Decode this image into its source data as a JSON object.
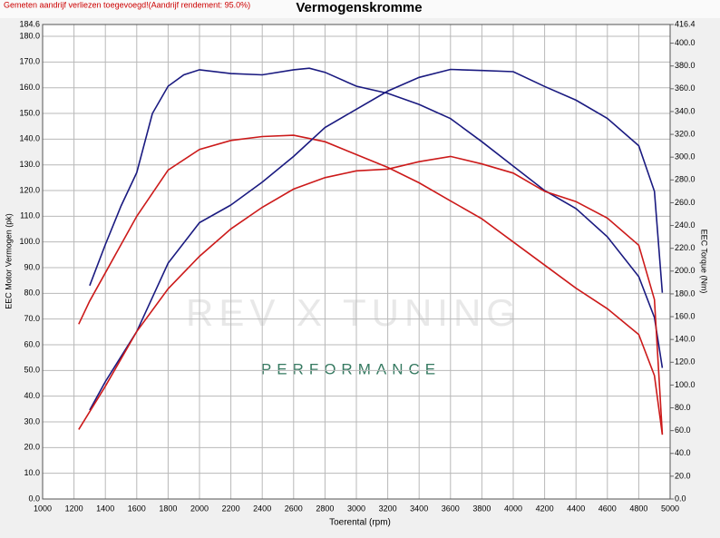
{
  "chart_data": {
    "type": "line",
    "title": "Vermogenskromme",
    "subtitle": "Gemeten aandrijf verliezen toegevoegd!(Aandrijf rendement: 95.0%)",
    "xlabel": "Toerental (rpm)",
    "ylabel": "EEC Motor Vermogen (pk)",
    "y2label": "EEC Torque (Nm)",
    "watermark": {
      "brand": "REV X TUNING",
      "tagline": "PERFORMANCE"
    },
    "grid": true,
    "xlim": [
      1000,
      5000
    ],
    "xticks": [
      1000,
      1200,
      1400,
      1600,
      1800,
      2000,
      2200,
      2400,
      2600,
      2800,
      3000,
      3200,
      3400,
      3600,
      3800,
      4000,
      4200,
      4400,
      4600,
      4800,
      5000
    ],
    "ylim": [
      0,
      184.6
    ],
    "yticks": [
      {
        "value": 0,
        "label": "0.0"
      },
      {
        "value": 10,
        "label": "10.0"
      },
      {
        "value": 20,
        "label": "20.0"
      },
      {
        "value": 30,
        "label": "30.0"
      },
      {
        "value": 40,
        "label": "40.0"
      },
      {
        "value": 50,
        "label": "50.0"
      },
      {
        "value": 60,
        "label": "60.0"
      },
      {
        "value": 70,
        "label": "70.0"
      },
      {
        "value": 80,
        "label": "80.0"
      },
      {
        "value": 90,
        "label": "90.0"
      },
      {
        "value": 100,
        "label": "100.0"
      },
      {
        "value": 110,
        "label": "110.0"
      },
      {
        "value": 120,
        "label": "120.0"
      },
      {
        "value": 130,
        "label": "130.0"
      },
      {
        "value": 140,
        "label": "140.0"
      },
      {
        "value": 150,
        "label": "150.0"
      },
      {
        "value": 160,
        "label": "160.0"
      },
      {
        "value": 170,
        "label": "170.0"
      },
      {
        "value": 180,
        "label": "180.0"
      },
      184.6
    ],
    "y2lim": [
      0,
      416.4
    ],
    "y2ticks": [
      {
        "value": 0,
        "label": "0.0"
      },
      {
        "value": 20,
        "label": "20.0"
      },
      {
        "value": 40,
        "label": "40.0"
      },
      {
        "value": 60,
        "label": "60.0"
      },
      {
        "value": 80,
        "label": "80.0"
      },
      {
        "value": 100,
        "label": "100.0"
      },
      {
        "value": 120,
        "label": "120.0"
      },
      {
        "value": 140,
        "label": "140.0"
      },
      {
        "value": 160,
        "label": "160.0"
      },
      {
        "value": 180,
        "label": "180.0"
      },
      {
        "value": 200,
        "label": "200.0"
      },
      {
        "value": 220,
        "label": "220.0"
      },
      {
        "value": 240,
        "label": "240.0"
      },
      {
        "value": 260,
        "label": "260.0"
      },
      {
        "value": 280,
        "label": "280.0"
      },
      {
        "value": 300,
        "label": "300.0"
      },
      {
        "value": 320,
        "label": "320.0"
      },
      {
        "value": 340,
        "label": "340.0"
      },
      {
        "value": 360,
        "label": "360.0"
      },
      {
        "value": 380,
        "label": "380.0"
      },
      {
        "value": 400,
        "label": "400.0"
      },
      416.4
    ],
    "series": [
      {
        "color": "#1a1a80",
        "x": [
          1300,
          1400,
          1500,
          1600,
          1700,
          1800,
          1900,
          2000,
          2200,
          2400,
          2600,
          2700,
          2800,
          3000,
          3200,
          3400,
          3600,
          3800,
          4000,
          4200,
          4400,
          4600,
          4800,
          4900,
          4950
        ],
        "values": [
          83,
          99,
          114,
          127,
          150,
          160.6,
          165,
          167,
          165.5,
          165,
          167,
          167.6,
          166,
          160.6,
          157.8,
          153.5,
          148,
          139,
          129.5,
          120,
          113,
          102,
          86.5,
          70.6,
          51
        ]
      },
      {
        "color": "#cc1a1a",
        "x": [
          1230,
          1300,
          1400,
          1600,
          1800,
          2000,
          2200,
          2400,
          2600,
          2800,
          3000,
          3200,
          3400,
          3600,
          3800,
          4000,
          4200,
          4400,
          4600,
          4800,
          4900,
          4950
        ],
        "values": [
          68,
          77,
          88,
          110,
          128,
          136,
          139.5,
          141,
          141.5,
          139,
          134,
          129,
          123,
          116,
          109,
          100,
          91,
          82,
          74,
          64,
          48,
          25
        ]
      },
      {
        "color": "#1a1a80",
        "axis": "y2",
        "x": [
          1300,
          1400,
          1600,
          1800,
          2000,
          2200,
          2400,
          2600,
          2800,
          3000,
          3200,
          3400,
          3600,
          3800,
          4000,
          4200,
          4400,
          4600,
          4800,
          4900,
          4950
        ],
        "values": [
          78,
          103,
          147,
          207,
          242.5,
          258,
          278,
          300.6,
          326,
          342,
          358,
          370,
          377,
          376,
          375,
          362,
          350,
          334,
          310,
          270,
          181
        ]
      },
      {
        "color": "#cc1a1a",
        "axis": "y2",
        "x": [
          1230,
          1400,
          1600,
          1800,
          2000,
          2200,
          2400,
          2600,
          2800,
          3000,
          3200,
          3400,
          3600,
          3800,
          4000,
          4200,
          4400,
          4600,
          4800,
          4900,
          4950
        ],
        "values": [
          61,
          99,
          147,
          184.5,
          213,
          237,
          256,
          272,
          282,
          288,
          289.5,
          296,
          300.6,
          294,
          286,
          270,
          261,
          246.5,
          222.7,
          175,
          57
        ]
      }
    ]
  }
}
